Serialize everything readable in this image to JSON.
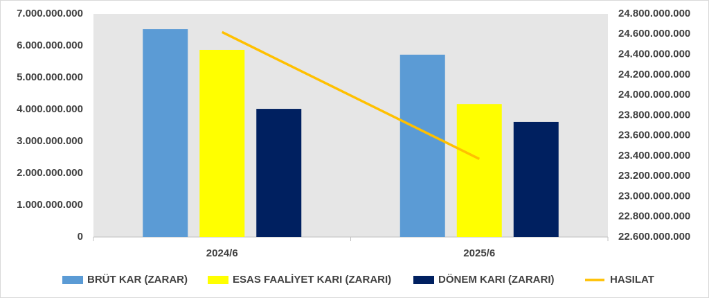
{
  "chart_data": {
    "type": "bar",
    "categories": [
      "2024/6",
      "2025/6"
    ],
    "series": [
      {
        "name": "BRÜT KAR (ZARAR)",
        "color": "#5b9bd5",
        "values": [
          6520000000,
          5720000000
        ]
      },
      {
        "name": "ESAS FAALİYET KARI (ZARARI)",
        "color": "#ffff00",
        "values": [
          5870000000,
          4170000000
        ]
      },
      {
        "name": "DÖNEM KARI (ZARARI)",
        "color": "#002060",
        "values": [
          4020000000,
          3610000000
        ]
      },
      {
        "name": "HASILAT",
        "color": "#ffc000",
        "type": "line",
        "axis": "y2",
        "values": [
          24620000000,
          23370000000
        ]
      }
    ],
    "ylim": [
      0,
      7000000000
    ],
    "yticks": [
      0,
      {
        "value": 1000000000,
        "label": "1.000.000.000"
      },
      {
        "value": 2000000000,
        "label": "2.000.000.000"
      },
      {
        "value": 3000000000,
        "label": "3.000.000.000"
      },
      {
        "value": 4000000000,
        "label": "4.000.000.000"
      },
      {
        "value": 5000000000,
        "label": "5.000.000.000"
      },
      {
        "value": 6000000000,
        "label": "6.000.000.000"
      },
      {
        "value": 7000000000,
        "label": "7.000.000.000"
      }
    ],
    "y2lim": [
      22600000000,
      24800000000
    ],
    "y2ticks": [
      {
        "value": 22600000000,
        "label": "22.600.000.000"
      },
      {
        "value": 22800000000,
        "label": "22.800.000.000"
      },
      {
        "value": 23000000000,
        "label": "23.000.000.000"
      },
      {
        "value": 23200000000,
        "label": "23.200.000.000"
      },
      {
        "value": 23400000000,
        "label": "23.400.000.000"
      },
      {
        "value": 23600000000,
        "label": "23.600.000.000"
      },
      {
        "value": 23800000000,
        "label": "23.800.000.000"
      },
      {
        "value": 24000000000,
        "label": "24.000.000.000"
      },
      {
        "value": 24200000000,
        "label": "24.200.000.000"
      },
      {
        "value": 24400000000,
        "label": "24.400.000.000"
      },
      {
        "value": 24600000000,
        "label": "24.600.000.000"
      },
      {
        "value": 24800000000,
        "label": "24.800.000.000"
      }
    ],
    "grid": false,
    "legend": "bottom"
  }
}
